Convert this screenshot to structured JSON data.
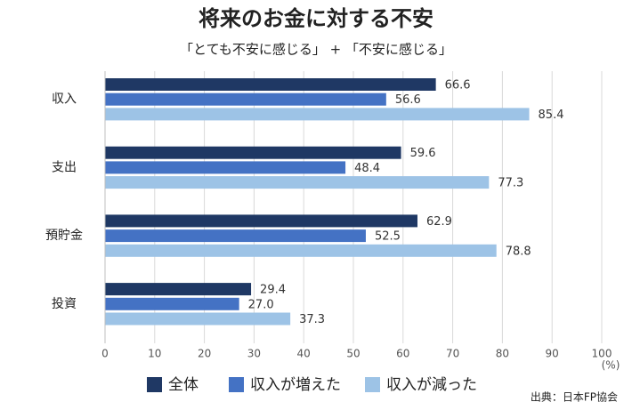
{
  "chart_data": {
    "type": "hbar",
    "title": "将来のお金に対する不安",
    "subtitle": "「とても不安に感じる」 + 「不安に感じる」",
    "x_unit": "(%)",
    "source": "出典：日本FP協会",
    "categories": [
      "収入",
      "支出",
      "預貯金",
      "投資"
    ],
    "series": [
      {
        "name": "全体",
        "color": "#1f3864",
        "values": [
          66.6,
          59.6,
          62.9,
          29.4
        ],
        "value_labels": [
          "66.6",
          "59.6",
          "62.9",
          "29.4"
        ]
      },
      {
        "name": "収入が増えた",
        "color": "#4472c4",
        "values": [
          56.6,
          48.4,
          52.5,
          27.0
        ],
        "value_labels": [
          "56.6",
          "48.4",
          "52.5",
          "27.0"
        ]
      },
      {
        "name": "収入が減った",
        "color": "#9dc3e6",
        "values": [
          85.4,
          77.3,
          78.8,
          37.3
        ],
        "value_labels": [
          "85.4",
          "77.3",
          "78.8",
          "37.3"
        ]
      }
    ],
    "xlim": [
      0,
      100
    ],
    "xticks": [
      0,
      10,
      20,
      30,
      40,
      50,
      60,
      70,
      80,
      90,
      100
    ],
    "grid": true
  }
}
